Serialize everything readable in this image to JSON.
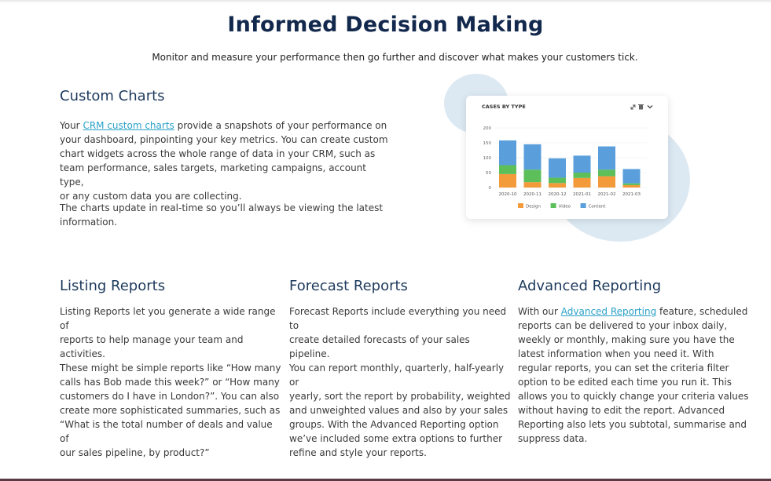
{
  "header": {
    "title": "Informed Decision Making",
    "subtitle": "Monitor and measure your performance then go further and discover what makes your customers tick."
  },
  "custom_charts": {
    "heading": "Custom Charts",
    "para1_before": "Your ",
    "para1_link": "CRM custom charts",
    "para1_line1_after": " provide a snapshots of your performance on",
    "para1_line2": "your dashboard, pinpointing your key metrics. You can create custom",
    "para1_line3": "chart widgets across the whole range of data in your CRM, such as",
    "para1_line4": "team performance, sales targets, marketing campaigns, account type,",
    "para1_line5": "or any custom data you are collecting.",
    "para2_line1": "The charts update in real-time so you’ll always be viewing the latest",
    "para2_line2": "information."
  },
  "listing_reports": {
    "heading": "Listing Reports",
    "lines": [
      "Listing Reports let you generate a wide range of",
      "reports to help manage your team and activities.",
      "These might be simple reports like “How many",
      "calls has Bob made this week?” or “How many",
      "customers do I have in London?”. You can also",
      "create more sophisticated summaries, such as",
      "“What is the total number of deals and value of",
      "our sales pipeline, by product?”"
    ]
  },
  "forecast_reports": {
    "heading": "Forecast Reports",
    "lines": [
      "Forecast Reports include everything you need to",
      "create detailed forecasts of your sales pipeline.",
      "You can report monthly, quarterly, half-yearly or",
      "yearly, sort the report by probability, weighted",
      "and unweighted values and also by your sales",
      "groups. With the Advanced Reporting option",
      "we’ve included some extra options to further",
      "refine and style your reports."
    ]
  },
  "advanced_reporting": {
    "heading": "Advanced Reporting",
    "line1_before": "With our ",
    "line1_link": "Advanced Reporting",
    "line1_after": " feature, scheduled",
    "lines": [
      "reports can be delivered to your inbox daily,",
      "weekly or monthly, making sure you have the",
      "latest information when you need it. With",
      "regular reports, you can set the criteria filter",
      "option to be edited each time you run it. This",
      "allows you to quickly change your criteria values",
      "without having to edit the report. Advanced",
      "Reporting also lets you subtotal, summarise and",
      "suppress data."
    ]
  },
  "chart_widget": {
    "icons": [
      "expand-icon",
      "trash-icon",
      "chevron-down-icon"
    ]
  },
  "chart_data": {
    "type": "bar",
    "title": "CASES BY TYPE",
    "categories": [
      "2020-10",
      "2020-11",
      "2020-12",
      "2021-01",
      "2021-02",
      "2021-03"
    ],
    "ylim": [
      0,
      200
    ],
    "yticks": [
      "200",
      "150",
      "100",
      "50",
      "0"
    ],
    "stacked": true,
    "legend_position": "bottom",
    "series": [
      {
        "name": "Design",
        "color": "#f39a3b",
        "values": [
          45,
          18,
          15,
          32,
          38,
          8
        ]
      },
      {
        "name": "Video",
        "color": "#5cbf5a",
        "values": [
          30,
          42,
          18,
          18,
          22,
          6
        ]
      },
      {
        "name": "Content",
        "color": "#5a9fdc",
        "values": [
          83,
          85,
          65,
          57,
          78,
          48
        ]
      }
    ]
  }
}
